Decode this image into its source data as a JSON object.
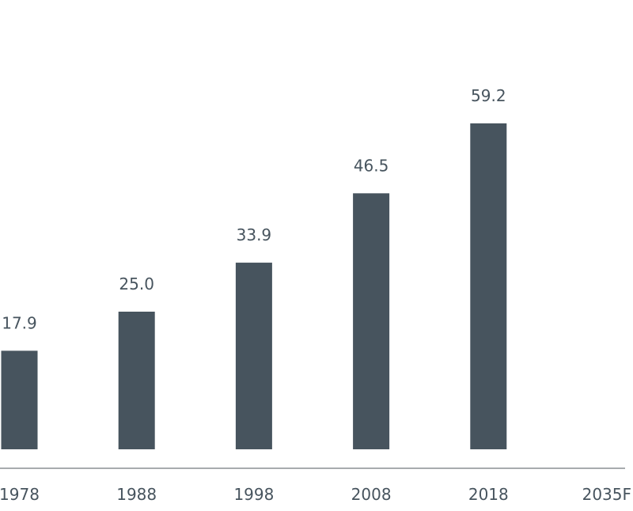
{
  "chart_data": {
    "type": "bar",
    "categories": [
      "1978",
      "1988",
      "1998",
      "2008",
      "2018",
      "2035F"
    ],
    "values": [
      17.9,
      25,
      33.9,
      46.5,
      59.2,
      null
    ],
    "value_labels": [
      "17.9",
      "25.0",
      "33.9",
      "46.5",
      "59.2",
      null
    ],
    "color": "#47545e"
  }
}
